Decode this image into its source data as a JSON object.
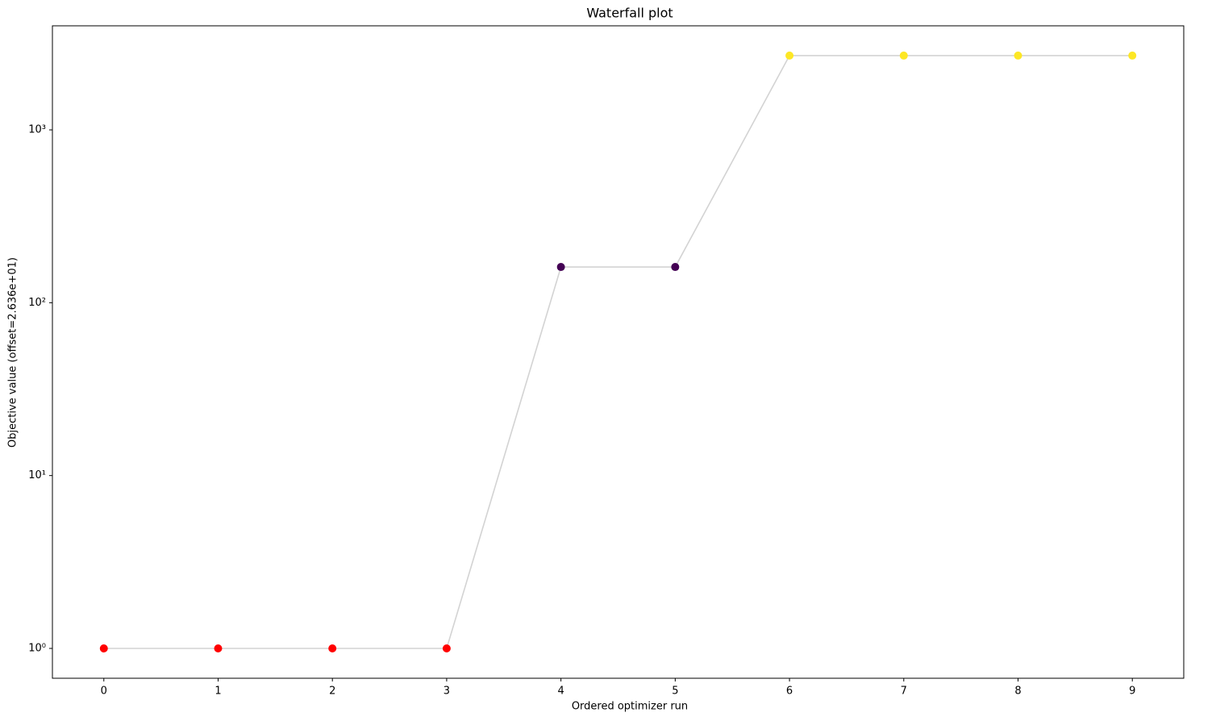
{
  "chart_data": {
    "type": "line",
    "title": "Waterfall plot",
    "x_label": "Ordered optimizer run",
    "y_label": "Objective value (offset=2.636e+01)",
    "x": [
      0,
      1,
      2,
      3,
      4,
      5,
      6,
      7,
      8,
      9
    ],
    "series": [
      {
        "color": "#d3d3d3",
        "values": [
          1,
          1,
          1,
          1,
          161,
          161,
          2690,
          2690,
          2690,
          2690
        ],
        "point_colors": [
          "#ff0000",
          "#ff0000",
          "#ff0000",
          "#ff0000",
          "#440154",
          "#440154",
          "#fde725",
          "#fde725",
          "#fde725",
          "#fde725"
        ]
      }
    ],
    "xlim": [
      -0.45,
      9.45
    ],
    "xticks": [
      0,
      1,
      2,
      3,
      4,
      5,
      6,
      7,
      8,
      9
    ],
    "ylim": [
      0.672,
      4000
    ],
    "yticks": [
      {
        "value": 1,
        "label": "10⁰"
      },
      {
        "value": 10,
        "label": "10¹"
      },
      {
        "value": 100,
        "label": "10²"
      },
      {
        "value": 1000,
        "label": "10³"
      }
    ],
    "log_y": true,
    "grid": false
  }
}
